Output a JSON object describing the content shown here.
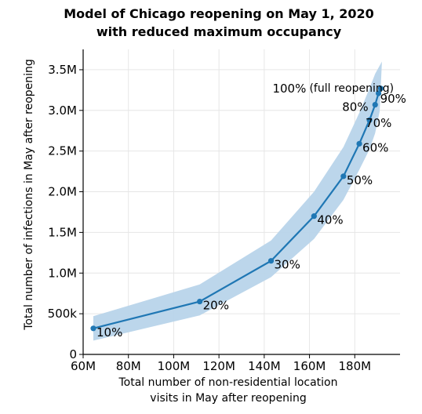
{
  "chart_data": {
    "type": "line",
    "title": [
      "Model of Chicago reopening on May 1, 2020",
      "with reduced maximum occupancy"
    ],
    "xlabel": [
      "Total number of non-residential location",
      "visits in May after reopening"
    ],
    "ylabel": "Total number of infections in May after reopening",
    "xlim": [
      60,
      200
    ],
    "ylim": [
      0,
      3.75
    ],
    "x_unit": "M",
    "y_unit": "M",
    "x_ticks": [
      {
        "value": 60,
        "label": "60M"
      },
      {
        "value": 80,
        "label": "80M"
      },
      {
        "value": 100,
        "label": "100M"
      },
      {
        "value": 120,
        "label": "120M"
      },
      {
        "value": 140,
        "label": "140M"
      },
      {
        "value": 160,
        "label": "160M"
      },
      {
        "value": 180,
        "label": "180M"
      }
    ],
    "y_ticks": [
      {
        "value": 0,
        "label": "0"
      },
      {
        "value": 0.5,
        "label": "500k"
      },
      {
        "value": 1.0,
        "label": "1.0M"
      },
      {
        "value": 1.5,
        "label": "1.5M"
      },
      {
        "value": 2.0,
        "label": "2.0M"
      },
      {
        "value": 2.5,
        "label": "2.5M"
      },
      {
        "value": 3.0,
        "label": "3.0M"
      },
      {
        "value": 3.5,
        "label": "3.5M"
      }
    ],
    "grid": true,
    "line_color": "#1f77b4",
    "band_color": "#b8d4ea",
    "points": [
      {
        "x": 64.5,
        "y": 0.32,
        "label": "10%"
      },
      {
        "x": 111.5,
        "y": 0.65,
        "label": "20%"
      },
      {
        "x": 143,
        "y": 1.15,
        "label": "30%"
      },
      {
        "x": 162,
        "y": 1.7,
        "label": "40%"
      },
      {
        "x": 175,
        "y": 2.19,
        "label": "50%"
      },
      {
        "x": 182,
        "y": 2.59,
        "label": "60%"
      },
      {
        "x": 186.5,
        "y": 2.88,
        "label": "70%"
      },
      {
        "x": 189,
        "y": 3.07,
        "label": "80%"
      },
      {
        "x": 190.5,
        "y": 3.21,
        "label": "90%"
      },
      {
        "x": 191.5,
        "y": 3.27,
        "label": "100%",
        "note": "(full reopening)"
      }
    ],
    "band": {
      "upper": [
        {
          "x": 64.5,
          "y": 0.47
        },
        {
          "x": 111.5,
          "y": 0.86
        },
        {
          "x": 143,
          "y": 1.4
        },
        {
          "x": 162,
          "y": 2.0
        },
        {
          "x": 175,
          "y": 2.55
        },
        {
          "x": 182,
          "y": 2.97
        },
        {
          "x": 186.5,
          "y": 3.27
        },
        {
          "x": 189,
          "y": 3.45
        },
        {
          "x": 192,
          "y": 3.6
        }
      ],
      "lower": [
        {
          "x": 191,
          "y": 2.99
        },
        {
          "x": 189,
          "y": 2.72
        },
        {
          "x": 186.5,
          "y": 2.52
        },
        {
          "x": 182,
          "y": 2.27
        },
        {
          "x": 175,
          "y": 1.9
        },
        {
          "x": 162,
          "y": 1.42
        },
        {
          "x": 143,
          "y": 0.95
        },
        {
          "x": 111.5,
          "y": 0.48
        },
        {
          "x": 64.5,
          "y": 0.17
        }
      ]
    }
  }
}
